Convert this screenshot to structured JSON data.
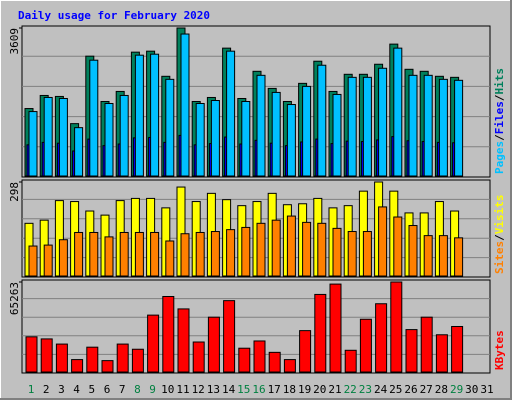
{
  "chart_data": {
    "type": "bar",
    "title": "Daily usage for February 2020",
    "categories": [
      "1",
      "2",
      "3",
      "4",
      "5",
      "6",
      "7",
      "8",
      "9",
      "10",
      "11",
      "12",
      "13",
      "14",
      "15",
      "16",
      "17",
      "18",
      "19",
      "20",
      "21",
      "22",
      "23",
      "24",
      "25",
      "26",
      "27",
      "28",
      "29",
      "30",
      "31"
    ],
    "category_colors": [
      "#008040",
      "#000000",
      "#000000",
      "#000000",
      "#000000",
      "#000000",
      "#000000",
      "#008040",
      "#008040",
      "#000000",
      "#000000",
      "#000000",
      "#000000",
      "#000000",
      "#008040",
      "#008040",
      "#000000",
      "#000000",
      "#000000",
      "#000000",
      "#000000",
      "#008040",
      "#008040",
      "#000000",
      "#000000",
      "#000000",
      "#000000",
      "#000000",
      "#008040",
      "#000000",
      "#000000"
    ],
    "legend_separator": "/",
    "panels": [
      {
        "ylim": [
          0,
          3609
        ],
        "yticks": [
          3609
        ],
        "series": [
          {
            "name": "Hits",
            "color": "#00805c",
            "values": [
              1645,
              1964,
              1940,
              1277,
              2922,
              1817,
              2062,
              3020,
              3044,
              2431,
              3609,
              1817,
              1915,
              3118,
              1890,
              2553,
              2136,
              1817,
              2259,
              2799,
              2062,
              2480,
              2480,
              2725,
              3216,
              2602,
              2553,
              2431,
              2406,
              null,
              null
            ]
          },
          {
            "name": "Files",
            "color": "#0000ff",
            "values": [
              760,
              820,
              800,
              610,
              900,
              740,
              780,
              930,
              940,
              820,
              990,
              760,
              790,
              950,
              780,
              870,
              800,
              740,
              830,
              900,
              790,
              850,
              840,
              880,
              960,
              860,
              840,
              820,
              810,
              null,
              null
            ]
          },
          {
            "name": "Pages",
            "color": "#00c0ff",
            "values": [
              1571,
              1915,
              1890,
              1179,
              2824,
              1768,
              1964,
              2946,
              2970,
              2357,
              3462,
              1768,
              1841,
              3044,
              1817,
              2455,
              2038,
              1743,
              2185,
              2701,
              1989,
              2406,
              2406,
              2627,
              3118,
              2455,
              2455,
              2357,
              2333,
              null,
              null
            ]
          }
        ]
      },
      {
        "ylim": [
          0,
          298
        ],
        "yticks": [
          298
        ],
        "series": [
          {
            "name": "Visits",
            "color": "#ffff00",
            "values": [
              167,
              177,
              239,
              236,
              206,
              193,
              239,
              246,
              246,
              216,
              282,
              236,
              262,
              242,
              223,
              236,
              262,
              226,
              229,
              246,
              216,
              223,
              269,
              298,
              269,
              200,
              200,
              236,
              206,
              null,
              null
            ]
          },
          {
            "name": "Sites",
            "color": "#ff8000",
            "values": [
              95,
              98,
              115,
              138,
              138,
              124,
              138,
              138,
              138,
              111,
              134,
              138,
              141,
              147,
              154,
              167,
              177,
              190,
              170,
              167,
              151,
              141,
              141,
              219,
              187,
              160,
              128,
              128,
              121,
              null,
              null
            ]
          }
        ]
      },
      {
        "ylim": [
          0,
          65263
        ],
        "yticks": [
          65263
        ],
        "series": [
          {
            "name": "KBytes",
            "color": "#ff0000",
            "values": [
              25500,
              24000,
              20250,
              9000,
              18000,
              8250,
              20250,
              16500,
              41250,
              54750,
              45750,
              21750,
              39750,
              51750,
              17250,
              22500,
              14250,
              9000,
              30000,
              56250,
              63750,
              15750,
              38250,
              49500,
              65263,
              30750,
              39750,
              27000,
              33000,
              null,
              null
            ]
          }
        ]
      }
    ]
  }
}
